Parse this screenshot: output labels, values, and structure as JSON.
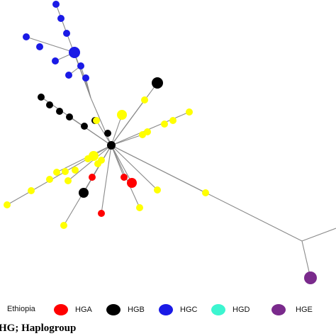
{
  "legend": {
    "title": "Ethiopia",
    "items": [
      {
        "label": "HGA",
        "color": "#ff0000"
      },
      {
        "label": "HGB",
        "color": "#000000"
      },
      {
        "label": "HGC",
        "color": "#1a1ae6"
      },
      {
        "label": "HGD",
        "color": "#3cf5d0"
      },
      {
        "label": "HGE",
        "color": "#7a2a8c"
      }
    ]
  },
  "footnote": "HG; Haplogroup",
  "colors": {
    "edge": "#8a8a8a",
    "yellow_nodes": "#ffff00"
  }
}
